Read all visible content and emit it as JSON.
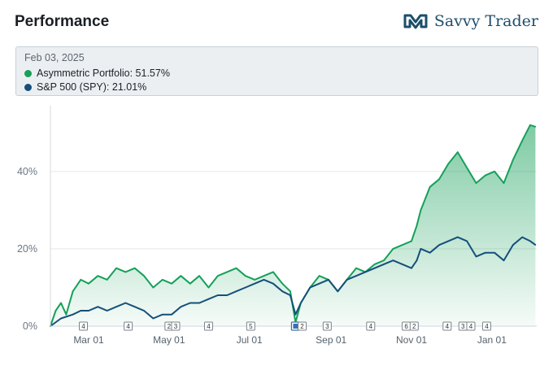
{
  "header": {
    "title": "Performance",
    "brand_name": "Savvy Trader",
    "brand_icon": "savvy-trader-logo-icon"
  },
  "tooltip": {
    "date": "Feb 03, 2025",
    "rows": [
      {
        "label": "Asymmetric Portfolio: 51.57%",
        "color": "#16a05a"
      },
      {
        "label": "S&P 500 (SPY): 21.01%",
        "color": "#154f7a"
      }
    ]
  },
  "chart_data": {
    "type": "line",
    "ylim": [
      0,
      57
    ],
    "yticks": [
      {
        "value": 0,
        "label": "0%"
      },
      {
        "value": 20,
        "label": "20%"
      },
      {
        "value": 40,
        "label": "40%"
      }
    ],
    "x_range": [
      "2024-02-01",
      "2025-02-04"
    ],
    "xticks": [
      {
        "date": "2024-03-01",
        "label": "Mar 01"
      },
      {
        "date": "2024-05-01",
        "label": "May 01"
      },
      {
        "date": "2024-07-01",
        "label": "Jul 01"
      },
      {
        "date": "2024-09-01",
        "label": "Sep 01"
      },
      {
        "date": "2024-11-01",
        "label": "Nov 01"
      },
      {
        "date": "2025-01-01",
        "label": "Jan 01"
      }
    ],
    "grid": true,
    "series": [
      {
        "name": "Asymmetric Portfolio",
        "color": "#16a05a",
        "area": true,
        "points": [
          [
            "2024-02-01",
            0
          ],
          [
            "2024-02-05",
            4
          ],
          [
            "2024-02-09",
            6
          ],
          [
            "2024-02-13",
            3
          ],
          [
            "2024-02-18",
            9
          ],
          [
            "2024-02-24",
            12
          ],
          [
            "2024-03-01",
            11
          ],
          [
            "2024-03-08",
            13
          ],
          [
            "2024-03-15",
            12
          ],
          [
            "2024-03-22",
            15
          ],
          [
            "2024-03-29",
            14
          ],
          [
            "2024-04-05",
            15
          ],
          [
            "2024-04-12",
            13
          ],
          [
            "2024-04-19",
            10
          ],
          [
            "2024-04-26",
            12
          ],
          [
            "2024-05-03",
            11
          ],
          [
            "2024-05-10",
            13
          ],
          [
            "2024-05-17",
            11
          ],
          [
            "2024-05-24",
            13
          ],
          [
            "2024-05-31",
            10
          ],
          [
            "2024-06-07",
            13
          ],
          [
            "2024-06-14",
            14
          ],
          [
            "2024-06-21",
            15
          ],
          [
            "2024-06-28",
            13
          ],
          [
            "2024-07-05",
            12
          ],
          [
            "2024-07-12",
            13
          ],
          [
            "2024-07-19",
            14
          ],
          [
            "2024-07-26",
            11
          ],
          [
            "2024-08-01",
            9
          ],
          [
            "2024-08-05",
            1
          ],
          [
            "2024-08-09",
            6
          ],
          [
            "2024-08-16",
            10
          ],
          [
            "2024-08-23",
            13
          ],
          [
            "2024-08-30",
            12
          ],
          [
            "2024-09-06",
            9
          ],
          [
            "2024-09-13",
            12
          ],
          [
            "2024-09-20",
            15
          ],
          [
            "2024-09-27",
            14
          ],
          [
            "2024-10-04",
            16
          ],
          [
            "2024-10-11",
            17
          ],
          [
            "2024-10-18",
            20
          ],
          [
            "2024-10-25",
            21
          ],
          [
            "2024-11-01",
            22
          ],
          [
            "2024-11-05",
            26
          ],
          [
            "2024-11-08",
            30
          ],
          [
            "2024-11-15",
            36
          ],
          [
            "2024-11-22",
            38
          ],
          [
            "2024-11-29",
            42
          ],
          [
            "2024-12-06",
            45
          ],
          [
            "2024-12-13",
            41
          ],
          [
            "2024-12-20",
            37
          ],
          [
            "2024-12-27",
            39
          ],
          [
            "2025-01-03",
            40
          ],
          [
            "2025-01-10",
            37
          ],
          [
            "2025-01-17",
            43
          ],
          [
            "2025-01-24",
            48
          ],
          [
            "2025-01-30",
            52
          ],
          [
            "2025-02-03",
            51.57
          ]
        ]
      },
      {
        "name": "S&P 500 (SPY)",
        "color": "#154f7a",
        "area": false,
        "points": [
          [
            "2024-02-01",
            0
          ],
          [
            "2024-02-09",
            2
          ],
          [
            "2024-02-18",
            3
          ],
          [
            "2024-02-24",
            4
          ],
          [
            "2024-03-01",
            4
          ],
          [
            "2024-03-08",
            5
          ],
          [
            "2024-03-15",
            4
          ],
          [
            "2024-03-22",
            5
          ],
          [
            "2024-03-29",
            6
          ],
          [
            "2024-04-05",
            5
          ],
          [
            "2024-04-12",
            4
          ],
          [
            "2024-04-19",
            2
          ],
          [
            "2024-04-26",
            3
          ],
          [
            "2024-05-03",
            3
          ],
          [
            "2024-05-10",
            5
          ],
          [
            "2024-05-17",
            6
          ],
          [
            "2024-05-24",
            6
          ],
          [
            "2024-05-31",
            7
          ],
          [
            "2024-06-07",
            8
          ],
          [
            "2024-06-14",
            8
          ],
          [
            "2024-06-21",
            9
          ],
          [
            "2024-06-28",
            10
          ],
          [
            "2024-07-05",
            11
          ],
          [
            "2024-07-12",
            12
          ],
          [
            "2024-07-19",
            11
          ],
          [
            "2024-07-26",
            9
          ],
          [
            "2024-08-01",
            8
          ],
          [
            "2024-08-05",
            3
          ],
          [
            "2024-08-09",
            6
          ],
          [
            "2024-08-16",
            10
          ],
          [
            "2024-08-23",
            11
          ],
          [
            "2024-08-30",
            12
          ],
          [
            "2024-09-06",
            9
          ],
          [
            "2024-09-13",
            12
          ],
          [
            "2024-09-20",
            13
          ],
          [
            "2024-09-27",
            14
          ],
          [
            "2024-10-04",
            15
          ],
          [
            "2024-10-11",
            16
          ],
          [
            "2024-10-18",
            17
          ],
          [
            "2024-10-25",
            16
          ],
          [
            "2024-11-01",
            15
          ],
          [
            "2024-11-05",
            17
          ],
          [
            "2024-11-08",
            20
          ],
          [
            "2024-11-15",
            19
          ],
          [
            "2024-11-22",
            21
          ],
          [
            "2024-11-29",
            22
          ],
          [
            "2024-12-06",
            23
          ],
          [
            "2024-12-13",
            22
          ],
          [
            "2024-12-20",
            18
          ],
          [
            "2024-12-27",
            19
          ],
          [
            "2025-01-03",
            19
          ],
          [
            "2025-01-10",
            17
          ],
          [
            "2025-01-17",
            21
          ],
          [
            "2025-01-24",
            23
          ],
          [
            "2025-01-30",
            22
          ],
          [
            "2025-02-03",
            21.01
          ]
        ]
      }
    ],
    "event_markers": [
      {
        "date": "2024-02-26",
        "label": "4"
      },
      {
        "date": "2024-03-31",
        "label": "4"
      },
      {
        "date": "2024-05-01",
        "label": "2"
      },
      {
        "date": "2024-05-06",
        "label": "3"
      },
      {
        "date": "2024-05-31",
        "label": "4"
      },
      {
        "date": "2024-07-02",
        "label": "5"
      },
      {
        "date": "2024-08-05",
        "label": "",
        "selected": true
      },
      {
        "date": "2024-08-10",
        "label": "2"
      },
      {
        "date": "2024-08-29",
        "label": "3"
      },
      {
        "date": "2024-10-01",
        "label": "4"
      },
      {
        "date": "2024-10-28",
        "label": "6"
      },
      {
        "date": "2024-11-03",
        "label": "2"
      },
      {
        "date": "2024-11-28",
        "label": "4"
      },
      {
        "date": "2024-12-10",
        "label": "3"
      },
      {
        "date": "2024-12-16",
        "label": "4"
      },
      {
        "date": "2024-12-28",
        "label": "4"
      }
    ]
  }
}
